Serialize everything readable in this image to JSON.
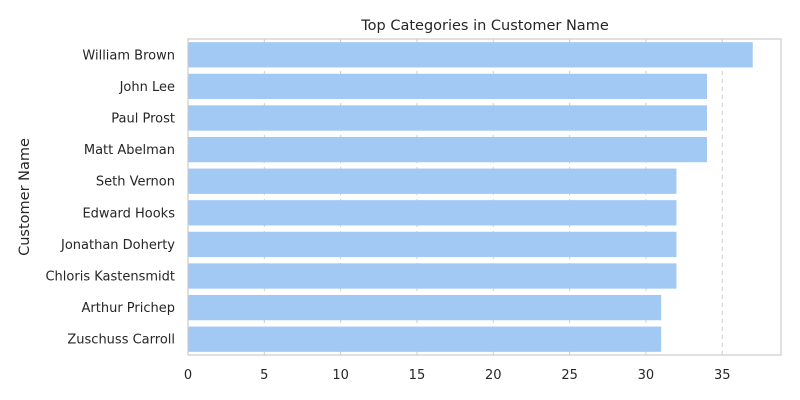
{
  "chart_data": {
    "type": "bar",
    "orientation": "horizontal",
    "title": "Top Categories in Customer Name",
    "xlabel": "",
    "ylabel": "Customer Name",
    "categories": [
      "William Brown",
      "John Lee",
      "Paul Prost",
      "Matt Abelman",
      "Seth Vernon",
      "Edward Hooks",
      "Jonathan Doherty",
      "Chloris Kastensmidt",
      "Arthur Prichep",
      "Zuschuss Carroll"
    ],
    "values": [
      37,
      34,
      34,
      34,
      32,
      32,
      32,
      32,
      31,
      31
    ],
    "xlim": [
      0,
      38.85
    ],
    "xticks": [
      0,
      5,
      10,
      15,
      20,
      25,
      30,
      35
    ],
    "grid": "x-dashed",
    "bar_color": "#a1c9f4"
  }
}
